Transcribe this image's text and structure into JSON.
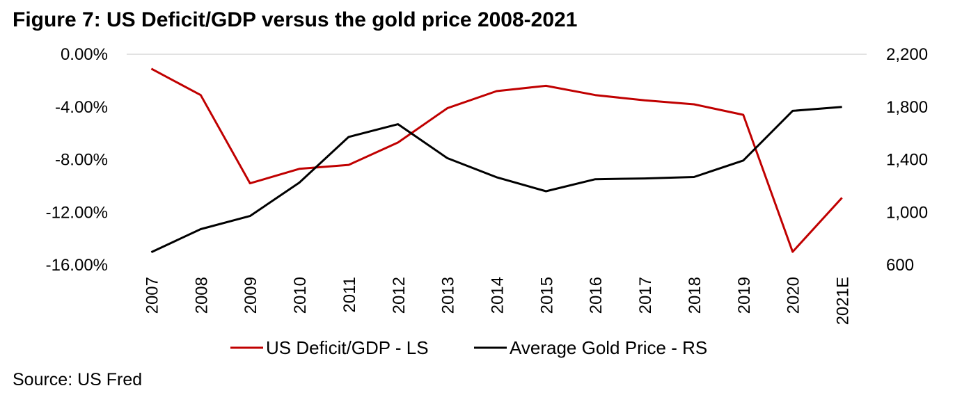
{
  "title": "Figure 7: US Deficit/GDP versus the gold price 2008-2021",
  "source": "Source: US Fred",
  "chart_data": {
    "type": "line",
    "title": "Figure 7: US Deficit/GDP versus the gold price 2008-2021",
    "categories": [
      "2007",
      "2008",
      "2009",
      "2010",
      "2011",
      "2012",
      "2013",
      "2014",
      "2015",
      "2016",
      "2017",
      "2018",
      "2019",
      "2020",
      "2021E"
    ],
    "series": [
      {
        "name": "US Deficit/GDP - LS",
        "axis": "left",
        "color": "#c00000",
        "values": [
          -1.1,
          -3.1,
          -9.8,
          -8.7,
          -8.4,
          -6.7,
          -4.1,
          -2.8,
          -2.4,
          -3.1,
          -3.5,
          -3.8,
          -4.6,
          -15.0,
          -10.9
        ]
      },
      {
        "name": "Average Gold Price - RS",
        "axis": "right",
        "color": "#000000",
        "values": [
          697,
          872,
          972,
          1225,
          1572,
          1669,
          1411,
          1266,
          1160,
          1251,
          1257,
          1268,
          1393,
          1770,
          1800
        ]
      }
    ],
    "left_axis": {
      "range": [
        -16,
        0
      ],
      "ticks": [
        0,
        -4,
        -8,
        -12,
        -16
      ],
      "tick_labels": [
        "0.00%",
        "-4.00%",
        "-8.00%",
        "-12.00%",
        "-16.00%"
      ]
    },
    "right_axis": {
      "range": [
        600,
        2200
      ],
      "ticks": [
        2200,
        1800,
        1400,
        1000,
        600
      ],
      "tick_labels": [
        "2,200",
        "1,800",
        "1,400",
        "1,000",
        "600"
      ]
    },
    "xlabel": "",
    "ylabel": "",
    "grid": "top gridline only",
    "legend": [
      "US Deficit/GDP - LS",
      "Average Gold Price - RS"
    ],
    "legend_position": "bottom"
  }
}
